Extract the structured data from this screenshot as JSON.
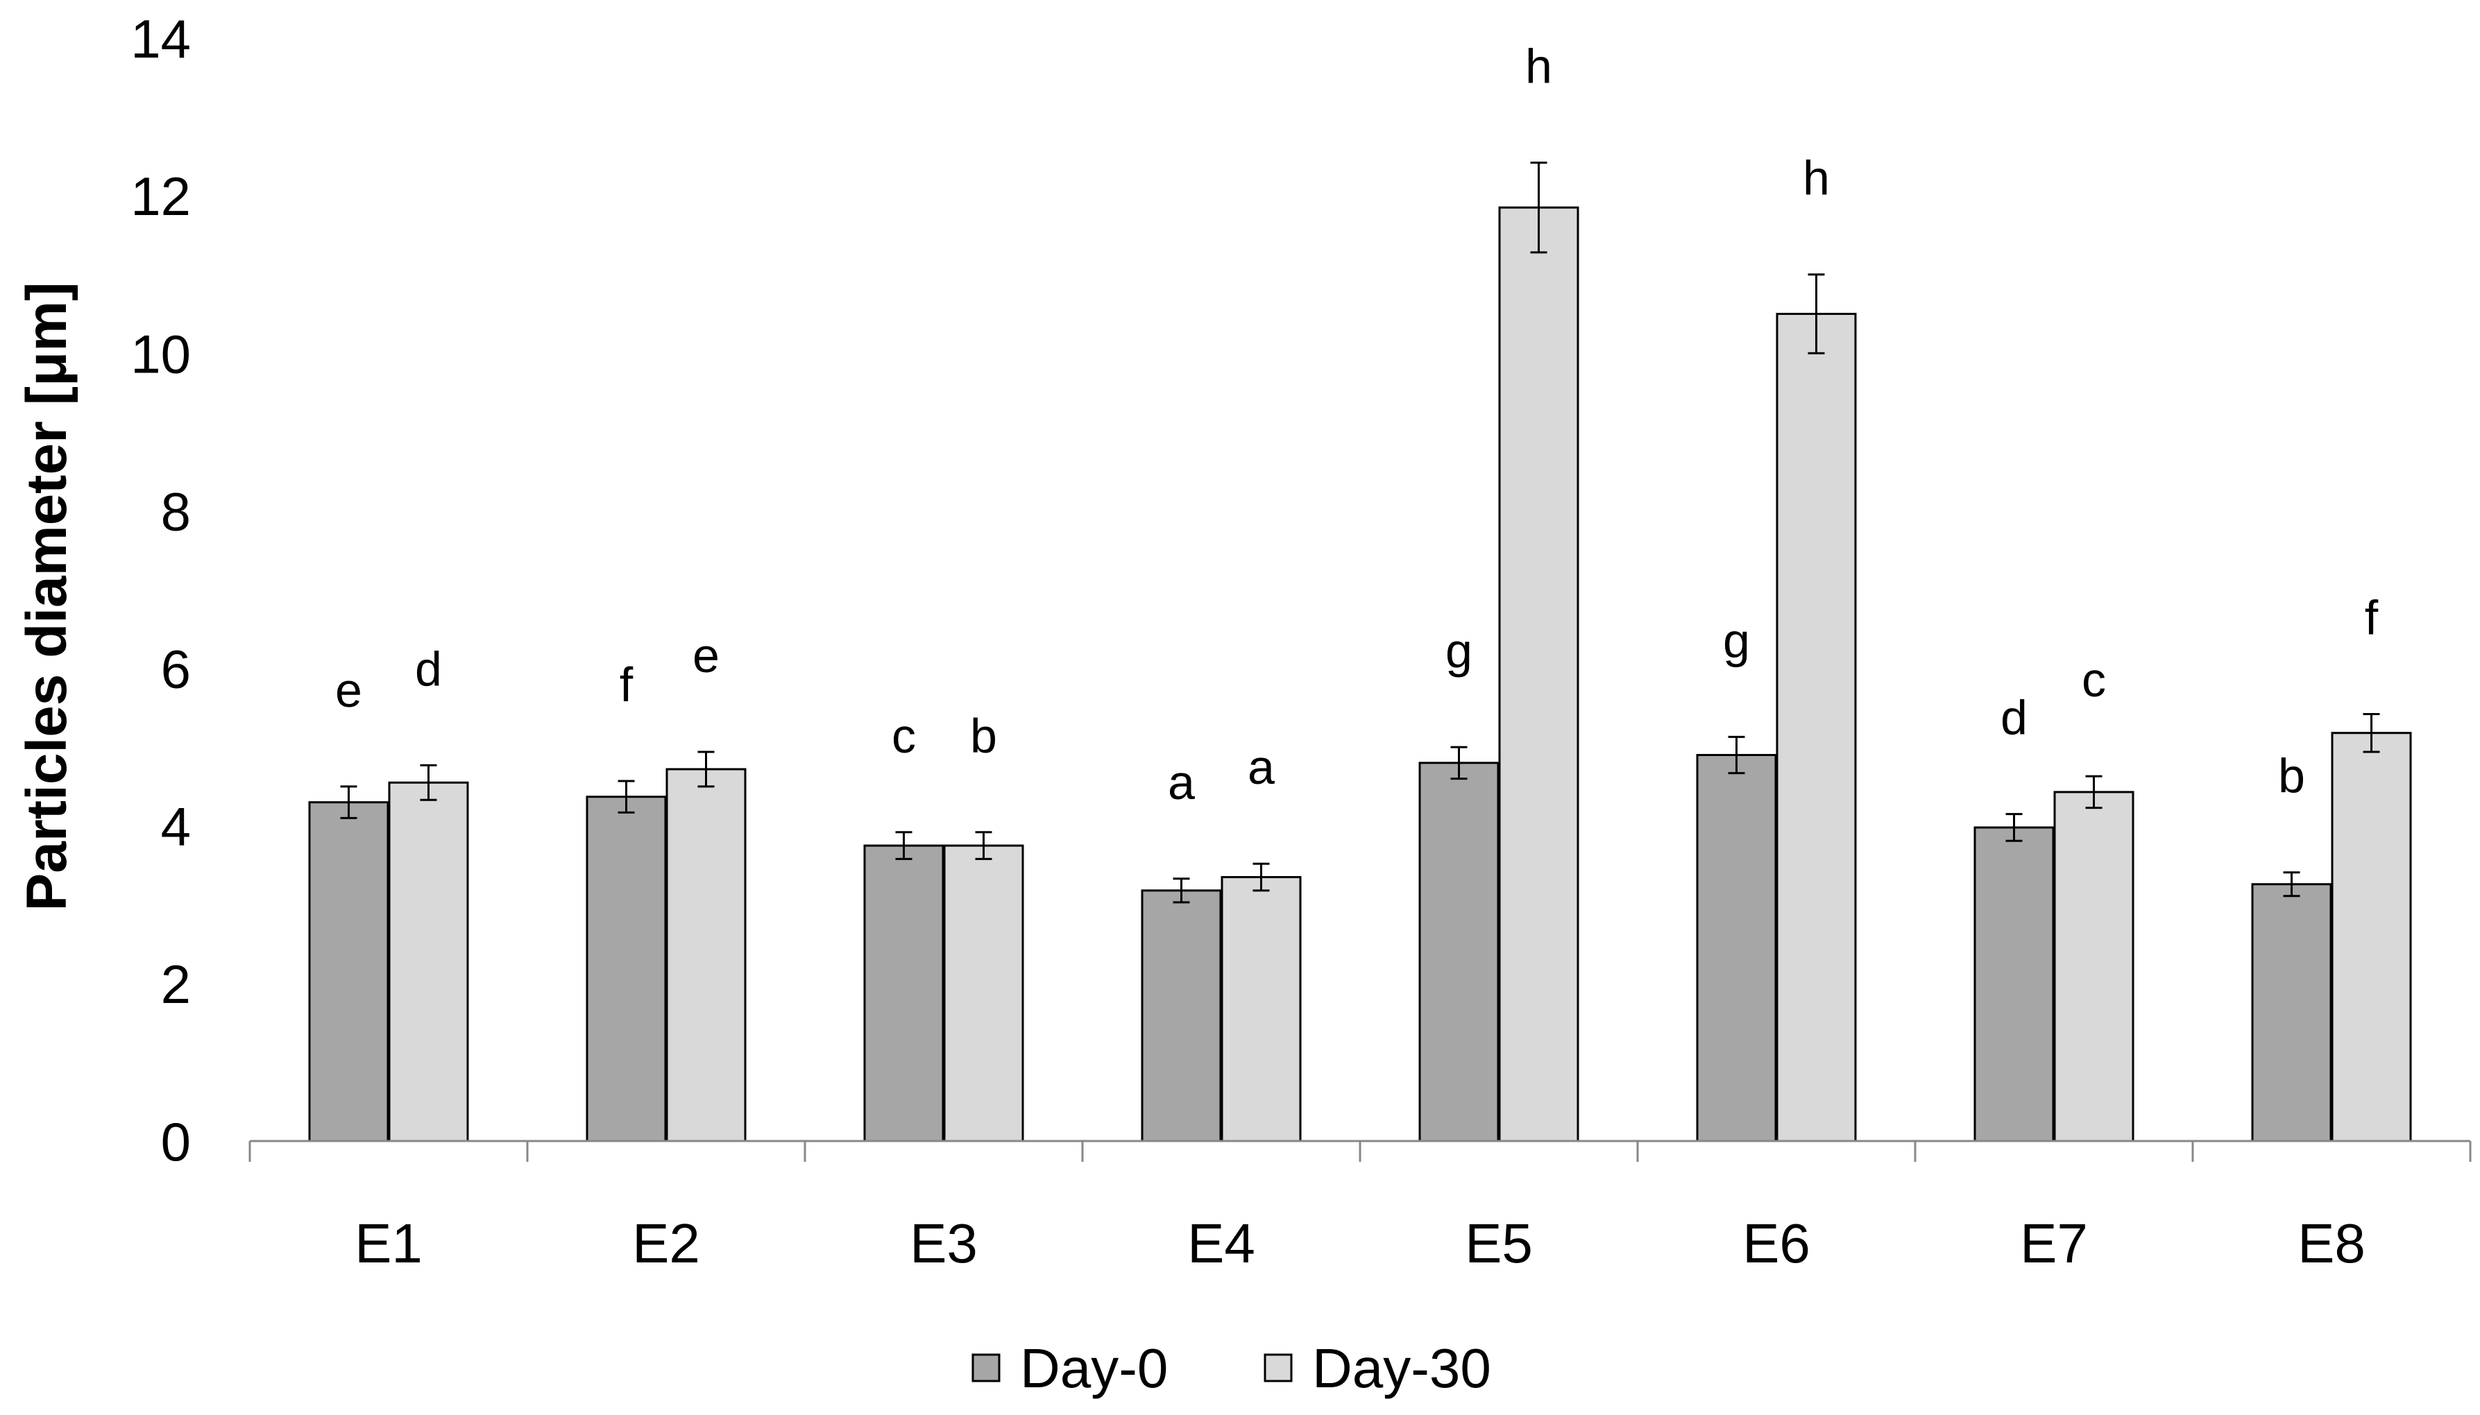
{
  "chart_data": {
    "type": "bar",
    "title": "",
    "xlabel": "",
    "ylabel": "Particles diameter [μm]",
    "ylim": [
      0,
      14
    ],
    "yticks": [
      0,
      2,
      4,
      6,
      8,
      10,
      12,
      14
    ],
    "yticks_text": [
      "0",
      "2",
      "4",
      "6",
      "8",
      "10",
      "12",
      "14"
    ],
    "categories": [
      "E1",
      "E2",
      "E3",
      "E4",
      "E5",
      "E6",
      "E7",
      "E8"
    ],
    "series": [
      {
        "name": "Day-0",
        "color": "#a6a6a6",
        "values": [
          4.3,
          4.37,
          3.75,
          3.18,
          4.8,
          4.9,
          3.98,
          3.26
        ],
        "errors": [
          0.2,
          0.2,
          0.17,
          0.15,
          0.2,
          0.23,
          0.17,
          0.15
        ],
        "letters": [
          "e",
          "f",
          "c",
          "a",
          "g",
          "g",
          "d",
          "b"
        ]
      },
      {
        "name": "Day-30",
        "color": "#d9d9d9",
        "values": [
          4.55,
          4.72,
          3.75,
          3.35,
          11.85,
          10.5,
          4.43,
          5.18
        ],
        "errors": [
          0.22,
          0.22,
          0.17,
          0.17,
          0.57,
          0.5,
          0.2,
          0.24
        ],
        "letters": [
          "d",
          "e",
          "b",
          "a",
          "h",
          "h",
          "c",
          "f"
        ]
      }
    ],
    "grid": false,
    "legend_position": "bottom-center",
    "legend": [
      "Day-0",
      "Day-30"
    ]
  }
}
